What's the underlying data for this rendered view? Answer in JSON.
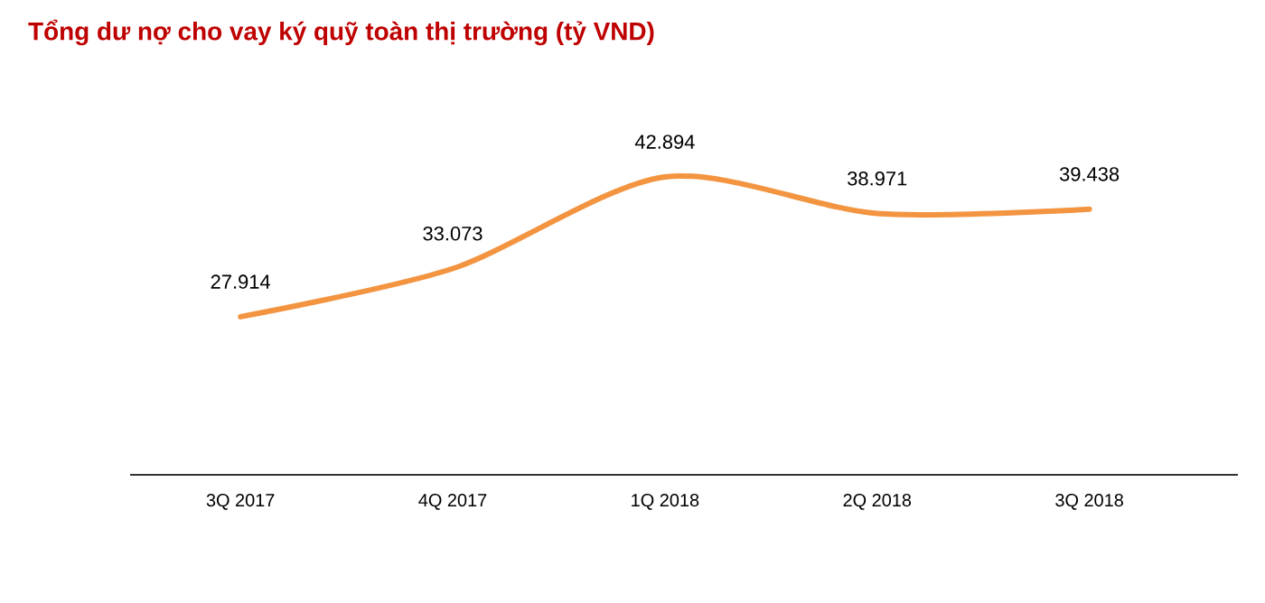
{
  "chart_data": {
    "type": "line",
    "title": "Tổng dư nợ cho vay ký quỹ toàn thị trường (tỷ VND)",
    "categories": [
      "3Q 2017",
      "4Q 2017",
      "1Q 2018",
      "2Q 2018",
      "3Q 2018"
    ],
    "series": [
      {
        "color": "#f39440",
        "values": [
          27914,
          33073,
          42894,
          38971,
          39438
        ],
        "value_labels": [
          "27.914",
          "33.073",
          "42.894",
          "38.971",
          "39.438"
        ]
      }
    ],
    "marker": "none",
    "line_style": "solid"
  }
}
